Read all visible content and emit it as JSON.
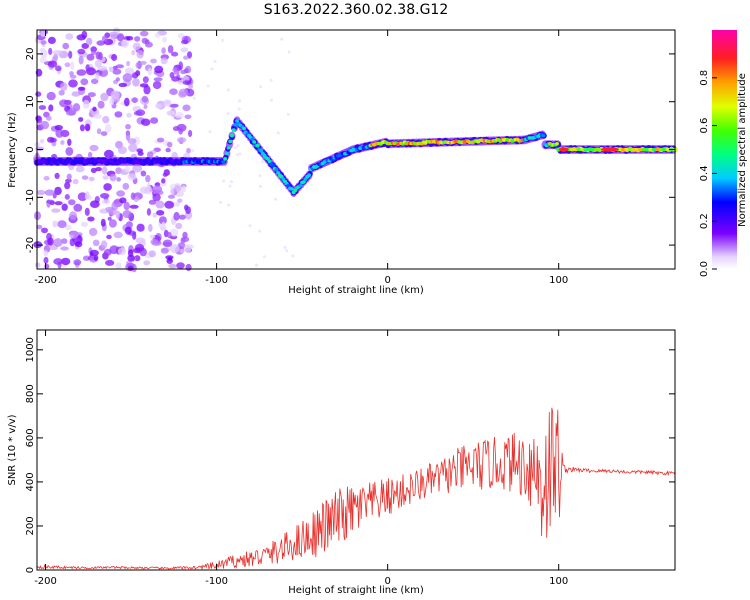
{
  "title": "S163.2022.360.02.38.G12",
  "spectrogram": {
    "xlabel": "Height of straight line (km)",
    "ylabel": "Frequency (Hz)",
    "xlim": [
      -205,
      168
    ],
    "ylim": [
      -25,
      25
    ],
    "x_ticks": [
      "-200",
      "-100",
      "0",
      "100"
    ],
    "y_ticks": [
      "20",
      "10",
      "0",
      "-10",
      "-20"
    ],
    "colorbar": {
      "label": "Normalized spectral amplitude",
      "range": [
        0,
        1
      ],
      "ticks": [
        "0.0",
        "0.2",
        "0.4",
        "0.6",
        "0.8"
      ]
    }
  },
  "chart_data": {
    "type": "line",
    "xlabel": "Height of straight line (km)",
    "ylabel": "SNR (10 * v/v)",
    "xlim": [
      -205,
      168
    ],
    "ylim": [
      0,
      1090
    ],
    "x_ticks": [
      "-200",
      "-100",
      "0",
      "100"
    ],
    "y_ticks": [
      "0",
      "200",
      "400",
      "600",
      "800",
      "1000"
    ],
    "series": [
      {
        "color": "#e8302c",
        "x": [
          -205,
          -190,
          -175,
          -160,
          -145,
          -130,
          -120,
          -110,
          -100,
          -90,
          -80,
          -70,
          -60,
          -50,
          -40,
          -30,
          -20,
          -10,
          0,
          10,
          20,
          30,
          40,
          50,
          60,
          70,
          80,
          85,
          90,
          95,
          100,
          103,
          110,
          120,
          130,
          140,
          150,
          160,
          168
        ],
        "y": [
          15,
          12,
          10,
          12,
          10,
          8,
          10,
          12,
          20,
          40,
          50,
          70,
          100,
          140,
          180,
          230,
          270,
          300,
          330,
          360,
          390,
          420,
          450,
          470,
          480,
          490,
          480,
          470,
          400,
          460,
          480,
          460,
          455,
          450,
          450,
          445,
          445,
          440,
          440
        ],
        "spread": [
          8,
          6,
          5,
          5,
          5,
          5,
          6,
          8,
          20,
          30,
          40,
          50,
          70,
          90,
          120,
          140,
          120,
          100,
          90,
          80,
          80,
          80,
          100,
          120,
          120,
          130,
          160,
          220,
          330,
          340,
          300,
          20,
          10,
          8,
          8,
          8,
          8,
          8,
          8
        ]
      }
    ]
  }
}
